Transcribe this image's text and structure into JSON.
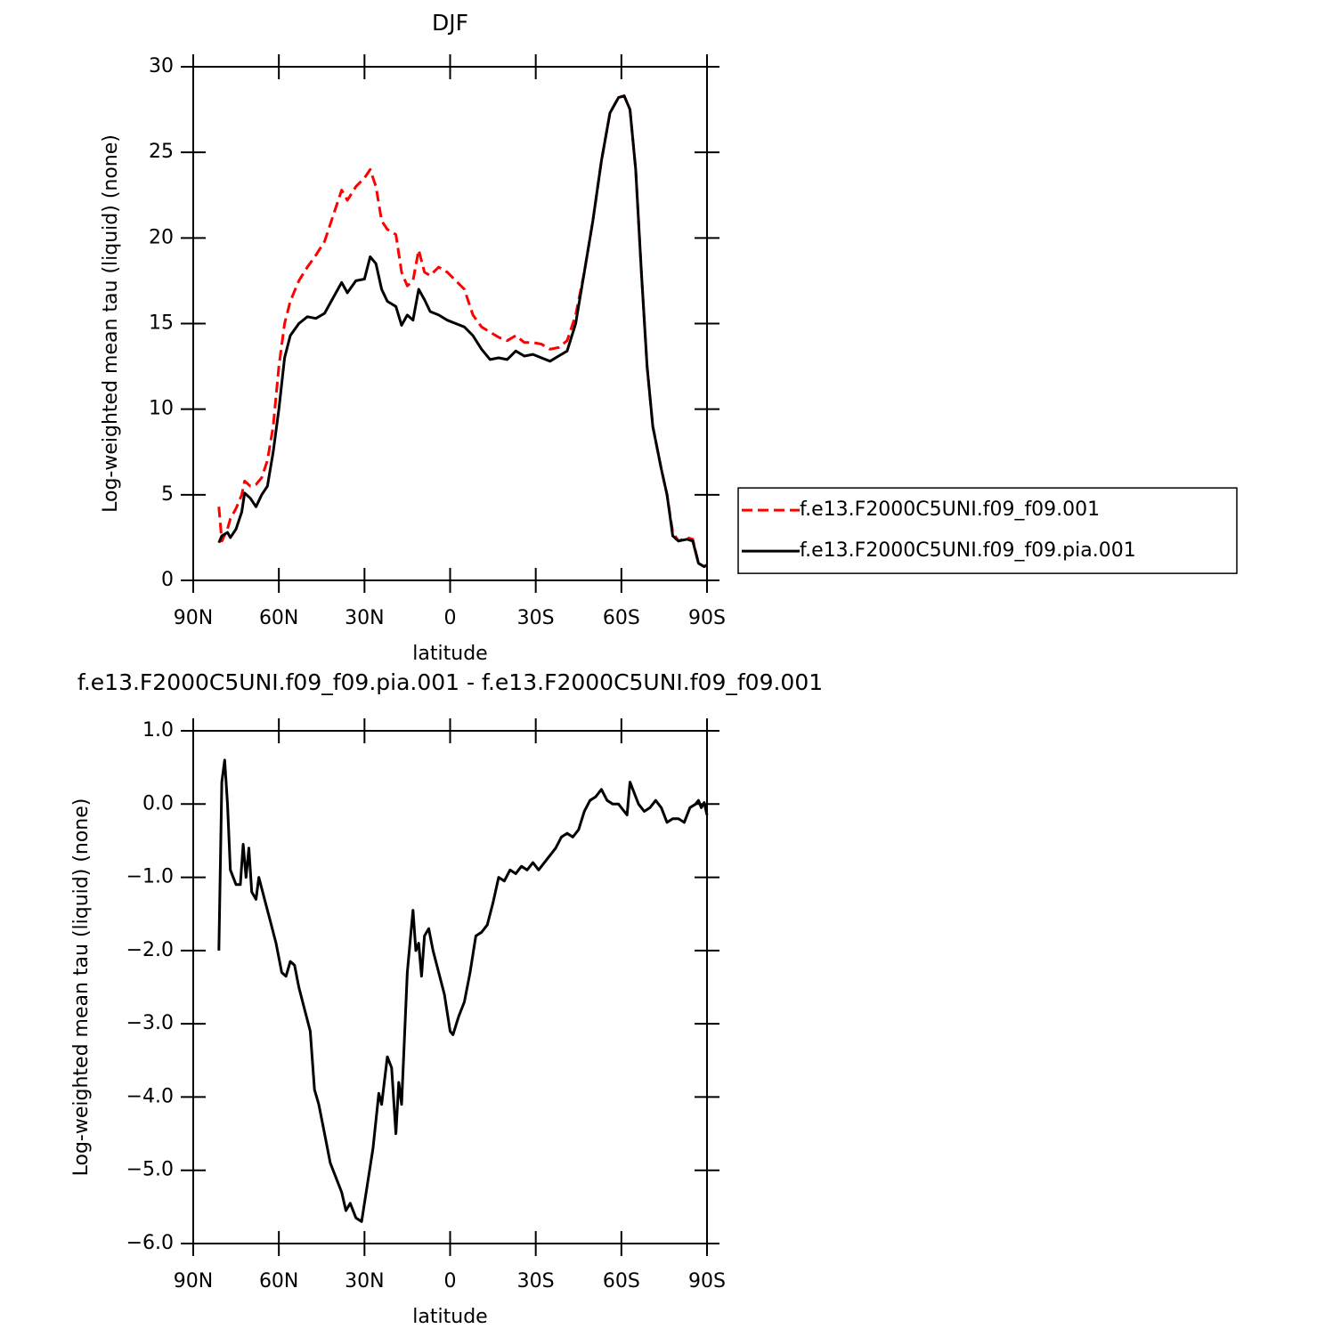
{
  "chart_data": [
    {
      "type": "line",
      "title": "DJF",
      "x_label": "latitude",
      "y_label": "Log-weighted mean tau (liquid) (none)",
      "xlim": [
        90,
        -90
      ],
      "xticks": [
        {
          "value": 90,
          "label": "90N"
        },
        {
          "value": 60,
          "label": "60N"
        },
        {
          "value": 30,
          "label": "30N"
        },
        0,
        {
          "value": -30,
          "label": "30S"
        },
        {
          "value": -60,
          "label": "60S"
        },
        {
          "value": -90,
          "label": "90S"
        }
      ],
      "ylim": [
        0,
        30
      ],
      "yticks": [
        0,
        5,
        10,
        15,
        20,
        25,
        30
      ],
      "legend": "right",
      "x": [
        81,
        80,
        78,
        77,
        75,
        73,
        72,
        70,
        68,
        66,
        64,
        62,
        60,
        58,
        56,
        53,
        50,
        47,
        44,
        41,
        38,
        36,
        33,
        30,
        28,
        26,
        24,
        22,
        19,
        17,
        15,
        13,
        11,
        9,
        7,
        4,
        1,
        -2,
        -5,
        -8,
        -11,
        -14,
        -17,
        -20,
        -23,
        -26,
        -29,
        -32,
        -35,
        -38,
        -41,
        -44,
        -47,
        -50,
        -53,
        -56,
        -59,
        -61,
        -63,
        -65,
        -67,
        -69,
        -71,
        -74,
        -76,
        -78,
        -80,
        -83,
        -85,
        -87,
        -89,
        -90
      ],
      "series": [
        {
          "name": "f.e13.F2000C5UNI.f09_f09.001",
          "color": "#ff0000",
          "line_style": "dashed",
          "values": [
            4.3,
            2.3,
            3.0,
            3.6,
            4.2,
            5.0,
            5.8,
            5.5,
            5.6,
            6.0,
            7.0,
            9.0,
            12.5,
            15.0,
            16.3,
            17.5,
            18.3,
            19.0,
            19.8,
            21.3,
            22.8,
            22.2,
            23.0,
            23.5,
            24.0,
            23.0,
            21.0,
            20.5,
            20.2,
            18.0,
            17.2,
            17.5,
            19.3,
            18.0,
            17.8,
            18.3,
            18.0,
            17.5,
            17.0,
            15.5,
            14.8,
            14.5,
            14.2,
            14.0,
            14.3,
            13.9,
            13.9,
            13.8,
            13.5,
            13.6,
            14.0,
            15.5,
            18.0,
            21.0,
            24.5,
            27.3,
            28.2,
            28.3,
            27.5,
            24.0,
            18.0,
            12.5,
            9.0,
            6.5,
            5.0,
            2.8,
            2.3,
            2.5,
            2.4,
            1.0,
            0.8,
            0.9
          ]
        },
        {
          "name": "f.e13.F2000C5UNI.f09_f09.pia.001",
          "color": "#000000",
          "line_style": "solid",
          "values": [
            2.2,
            2.6,
            2.8,
            2.5,
            3.0,
            4.0,
            5.1,
            4.8,
            4.3,
            5.0,
            5.5,
            7.5,
            10.0,
            13.0,
            14.3,
            15.0,
            15.4,
            15.3,
            15.6,
            16.5,
            17.4,
            16.8,
            17.5,
            17.6,
            18.9,
            18.5,
            17.0,
            16.3,
            16.0,
            14.9,
            15.5,
            15.2,
            17.0,
            16.4,
            15.7,
            15.5,
            15.2,
            15.0,
            14.8,
            14.3,
            13.5,
            12.9,
            13.0,
            12.9,
            13.4,
            13.1,
            13.2,
            13.0,
            12.8,
            13.1,
            13.4,
            15.0,
            18.0,
            21.0,
            24.5,
            27.3,
            28.2,
            28.3,
            27.5,
            24.0,
            18.0,
            12.5,
            9.0,
            6.5,
            5.0,
            2.6,
            2.3,
            2.4,
            2.3,
            1.0,
            0.8,
            0.9
          ]
        }
      ]
    },
    {
      "type": "line",
      "title": "f.e13.F2000C5UNI.f09_f09.pia.001 - f.e13.F2000C5UNI.f09_f09.001",
      "x_label": "latitude",
      "y_label": "Log-weighted mean tau (liquid) (none)",
      "xlim": [
        90,
        -90
      ],
      "xticks": [
        {
          "value": 90,
          "label": "90N"
        },
        {
          "value": 60,
          "label": "60N"
        },
        {
          "value": 30,
          "label": "30N"
        },
        0,
        {
          "value": -30,
          "label": "30S"
        },
        {
          "value": -60,
          "label": "60S"
        },
        {
          "value": -90,
          "label": "90S"
        }
      ],
      "ylim": [
        -6,
        1
      ],
      "yticks": [
        {
          "value": 1,
          "label": "1.0"
        },
        {
          "value": 0,
          "label": "0.0"
        },
        {
          "value": -1,
          "label": "−1.0"
        },
        {
          "value": -2,
          "label": "−2.0"
        },
        {
          "value": -3,
          "label": "−3.0"
        },
        {
          "value": -4,
          "label": "−4.0"
        },
        {
          "value": -5,
          "label": "−5.0"
        },
        {
          "value": -6,
          "label": "−6.0"
        }
      ],
      "x": [
        81,
        80,
        79,
        78,
        77,
        76,
        75,
        73.5,
        72.5,
        71.5,
        70.5,
        69.5,
        68,
        67,
        65,
        63,
        61,
        59,
        57.5,
        56,
        54.5,
        53,
        51,
        49,
        47.5,
        46,
        44,
        42,
        40,
        38,
        36.5,
        35,
        33,
        31,
        29,
        27,
        25,
        24,
        22,
        20.5,
        19,
        18,
        17,
        15,
        13,
        12,
        11,
        10,
        9,
        7.5,
        6,
        4,
        2,
        0,
        -1,
        -3,
        -5,
        -7,
        -9,
        -11,
        -13,
        -15,
        -17,
        -19,
        -21,
        -23,
        -25,
        -27,
        -29,
        -31,
        -33,
        -35,
        -37,
        -39,
        -41,
        -43,
        -45,
        -47,
        -49,
        -51,
        -53,
        -55,
        -57,
        -59,
        -61,
        -62,
        -63,
        -64,
        -66,
        -68,
        -70,
        -72,
        -74,
        -76,
        -78,
        -80,
        -82,
        -84,
        -86,
        -87,
        -88,
        -89,
        -90
      ],
      "series": [
        {
          "color": "#000000",
          "line_style": "solid",
          "values": [
            -2.0,
            0.3,
            0.6,
            0.0,
            -0.9,
            -1.0,
            -1.1,
            -1.1,
            -0.55,
            -1.0,
            -0.6,
            -1.2,
            -1.3,
            -1.0,
            -1.3,
            -1.6,
            -1.9,
            -2.3,
            -2.35,
            -2.15,
            -2.2,
            -2.5,
            -2.8,
            -3.1,
            -3.9,
            -4.1,
            -4.5,
            -4.9,
            -5.1,
            -5.3,
            -5.55,
            -5.45,
            -5.65,
            -5.7,
            -5.2,
            -4.7,
            -3.95,
            -4.1,
            -3.45,
            -3.6,
            -4.5,
            -3.8,
            -4.1,
            -2.3,
            -1.45,
            -2.0,
            -1.9,
            -2.35,
            -1.8,
            -1.7,
            -2.0,
            -2.3,
            -2.6,
            -3.1,
            -3.15,
            -2.9,
            -2.7,
            -2.3,
            -1.8,
            -1.75,
            -1.65,
            -1.35,
            -1.0,
            -1.05,
            -0.9,
            -0.95,
            -0.85,
            -0.9,
            -0.8,
            -0.9,
            -0.8,
            -0.7,
            -0.6,
            -0.45,
            -0.4,
            -0.45,
            -0.35,
            -0.1,
            0.05,
            0.1,
            0.2,
            0.05,
            0.0,
            0.0,
            -0.1,
            -0.15,
            0.3,
            0.2,
            0.0,
            -0.1,
            -0.05,
            0.05,
            -0.05,
            -0.25,
            -0.2,
            -0.2,
            -0.25,
            -0.05,
            0.0,
            0.05,
            -0.05,
            0.02,
            -0.15
          ]
        }
      ]
    }
  ]
}
